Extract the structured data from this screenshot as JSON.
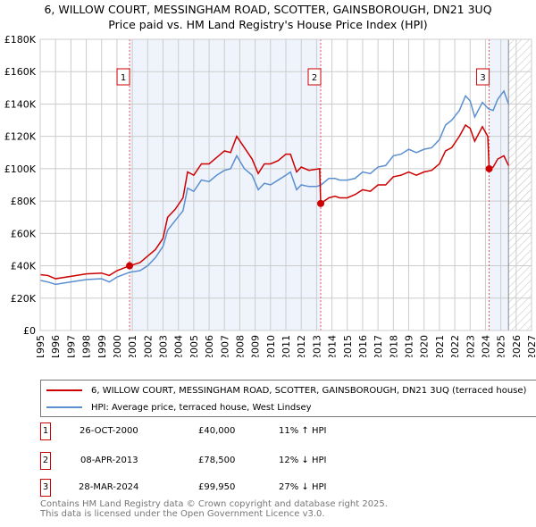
{
  "chart_data": {
    "type": "line",
    "title": "6, WILLOW COURT, MESSINGHAM ROAD, SCOTTER, GAINSBOROUGH, DN21 3UQ",
    "subtitle": "Price paid vs. HM Land Registry's House Price Index (HPI)",
    "xlim": [
      1995,
      2027
    ],
    "ylim": [
      0,
      180000
    ],
    "x_ticks": [
      "1995",
      "1996",
      "1997",
      "1998",
      "1999",
      "2000",
      "2001",
      "2002",
      "2003",
      "2004",
      "2005",
      "2006",
      "2007",
      "2008",
      "2009",
      "2010",
      "2011",
      "2012",
      "2013",
      "2014",
      "2015",
      "2016",
      "2017",
      "2018",
      "2019",
      "2020",
      "2021",
      "2022",
      "2023",
      "2024",
      "2025",
      "2026",
      "2027"
    ],
    "y_ticks": [
      {
        "v": 0,
        "label": "£0"
      },
      {
        "v": 20000,
        "label": "£20K"
      },
      {
        "v": 40000,
        "label": "£40K"
      },
      {
        "v": 60000,
        "label": "£60K"
      },
      {
        "v": 80000,
        "label": "£80K"
      },
      {
        "v": 100000,
        "label": "£100K"
      },
      {
        "v": 120000,
        "label": "£120K"
      },
      {
        "v": 140000,
        "label": "£140K"
      },
      {
        "v": 160000,
        "label": "£160K"
      },
      {
        "v": 180000,
        "label": "£180K"
      }
    ],
    "grid": true,
    "shaded_ranges": [
      [
        2000.82,
        2013.27
      ],
      [
        2024.24,
        2025.5
      ]
    ],
    "forecast_hatch": [
      2025.5,
      2027
    ],
    "series": [
      {
        "name": "6, WILLOW COURT, MESSINGHAM ROAD, SCOTTER, GAINSBOROUGH, DN21 3UQ (terraced house)",
        "color": "#cc0000",
        "x": [
          1995,
          1995.5,
          1996,
          1997,
          1998,
          1999,
          1999.5,
          2000,
          2000.82,
          2001.5,
          2002,
          2002.5,
          2003,
          2003.3,
          2003.8,
          2004.3,
          2004.6,
          2005,
          2005.5,
          2006,
          2006.5,
          2007,
          2007.4,
          2007.8,
          2008.3,
          2008.8,
          2009.2,
          2009.6,
          2010,
          2010.5,
          2011,
          2011.3,
          2011.7,
          2012,
          2012.5,
          2013.2,
          2013.27,
          2013.8,
          2014.2,
          2014.5,
          2015,
          2015.5,
          2016,
          2016.5,
          2017,
          2017.5,
          2018,
          2018.5,
          2019,
          2019.5,
          2020,
          2020.5,
          2021,
          2021.4,
          2021.8,
          2022.3,
          2022.7,
          2023,
          2023.3,
          2023.8,
          2024.15,
          2024.24,
          2024.5,
          2024.8,
          2025.2,
          2025.5
        ],
        "y": [
          34500,
          34000,
          32000,
          33500,
          35000,
          35500,
          34000,
          37000,
          40000,
          42000,
          46000,
          50000,
          57000,
          70000,
          75000,
          82000,
          98000,
          96000,
          103000,
          103000,
          107000,
          111000,
          110000,
          120000,
          113000,
          106000,
          97000,
          103000,
          103000,
          105000,
          109000,
          109000,
          98000,
          101000,
          99000,
          100000,
          78500,
          82000,
          83000,
          82000,
          82000,
          84000,
          87000,
          86000,
          90000,
          90000,
          95000,
          96000,
          98000,
          96000,
          98000,
          99000,
          103000,
          111000,
          113000,
          120000,
          127000,
          125000,
          117000,
          126000,
          120000,
          99950,
          101000,
          106000,
          108000,
          102000
        ]
      },
      {
        "name": "HPI: Average price, terraced house, West Lindsey",
        "color": "#5b8fd0",
        "x": [
          1995,
          1995.5,
          1996,
          1997,
          1998,
          1999,
          1999.5,
          2000,
          2000.82,
          2001.5,
          2002,
          2002.5,
          2003,
          2003.3,
          2003.8,
          2004.3,
          2004.6,
          2005,
          2005.5,
          2006,
          2006.5,
          2007,
          2007.4,
          2007.8,
          2008.3,
          2008.8,
          2009.2,
          2009.6,
          2010,
          2010.5,
          2011,
          2011.3,
          2011.7,
          2012,
          2012.5,
          2013,
          2013.3,
          2013.8,
          2014.2,
          2014.5,
          2015,
          2015.5,
          2016,
          2016.5,
          2017,
          2017.5,
          2018,
          2018.5,
          2019,
          2019.5,
          2020,
          2020.5,
          2021,
          2021.4,
          2021.8,
          2022.3,
          2022.7,
          2023,
          2023.3,
          2023.8,
          2024.2,
          2024.5,
          2024.8,
          2025.2,
          2025.5
        ],
        "y": [
          31000,
          30000,
          28500,
          30000,
          31500,
          32000,
          30000,
          33000,
          36000,
          37000,
          40000,
          45000,
          52000,
          62000,
          68000,
          74000,
          88000,
          86000,
          93000,
          92000,
          96000,
          99000,
          100000,
          108000,
          100000,
          96000,
          87000,
          91000,
          90000,
          93000,
          96000,
          98000,
          87000,
          90000,
          89000,
          89000,
          90000,
          94000,
          94000,
          93000,
          93000,
          94000,
          98000,
          97000,
          101000,
          102000,
          108000,
          109000,
          112000,
          110000,
          112000,
          113000,
          118000,
          127000,
          130000,
          136000,
          145000,
          142000,
          132000,
          141000,
          137000,
          136000,
          143000,
          148000,
          140000
        ]
      }
    ],
    "sales": [
      {
        "n": "1",
        "x": 2000.82,
        "y": 40000,
        "date": "26-OCT-2000",
        "price": "£40,000",
        "hpi": "11% ↑ HPI"
      },
      {
        "n": "2",
        "x": 2013.27,
        "y": 78500,
        "date": "08-APR-2013",
        "price": "£78,500",
        "hpi": "12% ↓ HPI"
      },
      {
        "n": "3",
        "x": 2024.24,
        "y": 99950,
        "date": "28-MAR-2024",
        "price": "£99,950",
        "hpi": "27% ↓ HPI"
      }
    ],
    "legend_position": "below"
  },
  "footer": {
    "line1": "Contains HM Land Registry data © Crown copyright and database right 2025.",
    "line2": "This data is licensed under the Open Government Licence v3.0."
  }
}
